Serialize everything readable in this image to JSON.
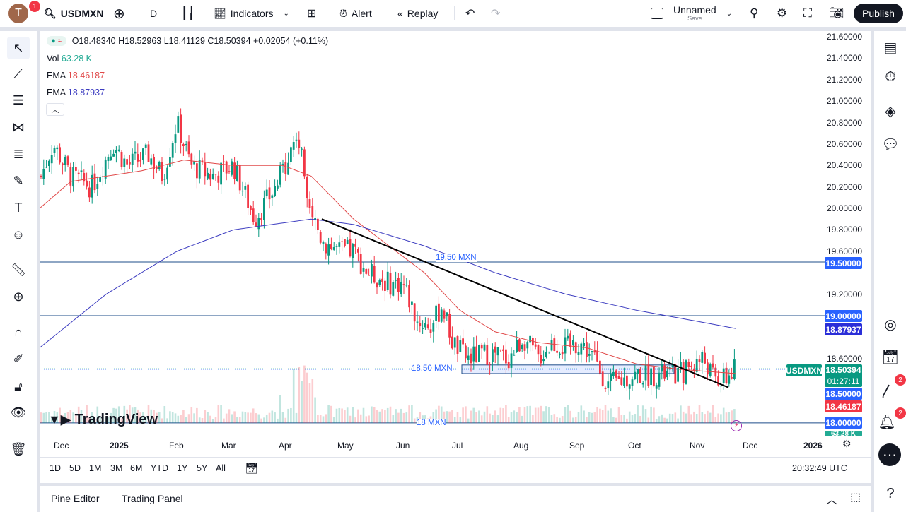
{
  "toolbar": {
    "avatar_letter": "T",
    "avatar_badge": "1",
    "symbol": "USDMXN",
    "interval": "D",
    "indicators": "Indicators",
    "alert": "Alert",
    "replay": "Replay",
    "layout_name": "Unnamed",
    "layout_save": "Save",
    "publish": "Publish"
  },
  "legend": {
    "ohlc": "O18.48340 H18.52963 L18.41129 C18.50394 +0.02054 (+0.11%)",
    "vol_label": "Vol",
    "vol_value": "63.28 K",
    "ema1_label": "EMA",
    "ema1_value": "18.46187",
    "ema2_label": "EMA",
    "ema2_value": "18.87937"
  },
  "price_axis": [
    "21.60000",
    "21.40000",
    "21.20000",
    "21.00000",
    "20.80000",
    "20.60000",
    "20.40000",
    "20.20000",
    "20.00000",
    "19.80000",
    "19.60000",
    "19.20000",
    "18.60000"
  ],
  "price_tags": {
    "l195": "19.50000",
    "l190": "19.00000",
    "ema2": "18.87937",
    "symbol": "USDMXN",
    "last": "18.50394",
    "countdown": "01:27:11",
    "l185": "18.50000",
    "ema1": "18.46187",
    "l180": "18.00000",
    "vol": "63.28 K"
  },
  "hline_labels": {
    "l195": "19.50 MXN",
    "l185": "18.50 MXN",
    "l180": "18 MXN"
  },
  "time_axis": [
    "Dec",
    "2025",
    "Feb",
    "Mar",
    "Apr",
    "May",
    "Jun",
    "Jul",
    "Aug",
    "Sep",
    "Oct",
    "Nov",
    "Dec",
    "2026"
  ],
  "ranges": [
    "1D",
    "5D",
    "1M",
    "3M",
    "6M",
    "YTD",
    "1Y",
    "5Y",
    "All"
  ],
  "clock": "20:32:49 UTC",
  "bottom_tabs": [
    "Pine Editor",
    "Trading Panel"
  ],
  "logo": "TradingView",
  "right_badges": {
    "feed": "2",
    "alerts": "2"
  },
  "colors": {
    "up": "#089981",
    "down": "#f23645",
    "ema_fast": "#e04848",
    "ema_slow": "#3c3cc0",
    "hline": "#2962ff",
    "trendline": "#000000"
  }
}
